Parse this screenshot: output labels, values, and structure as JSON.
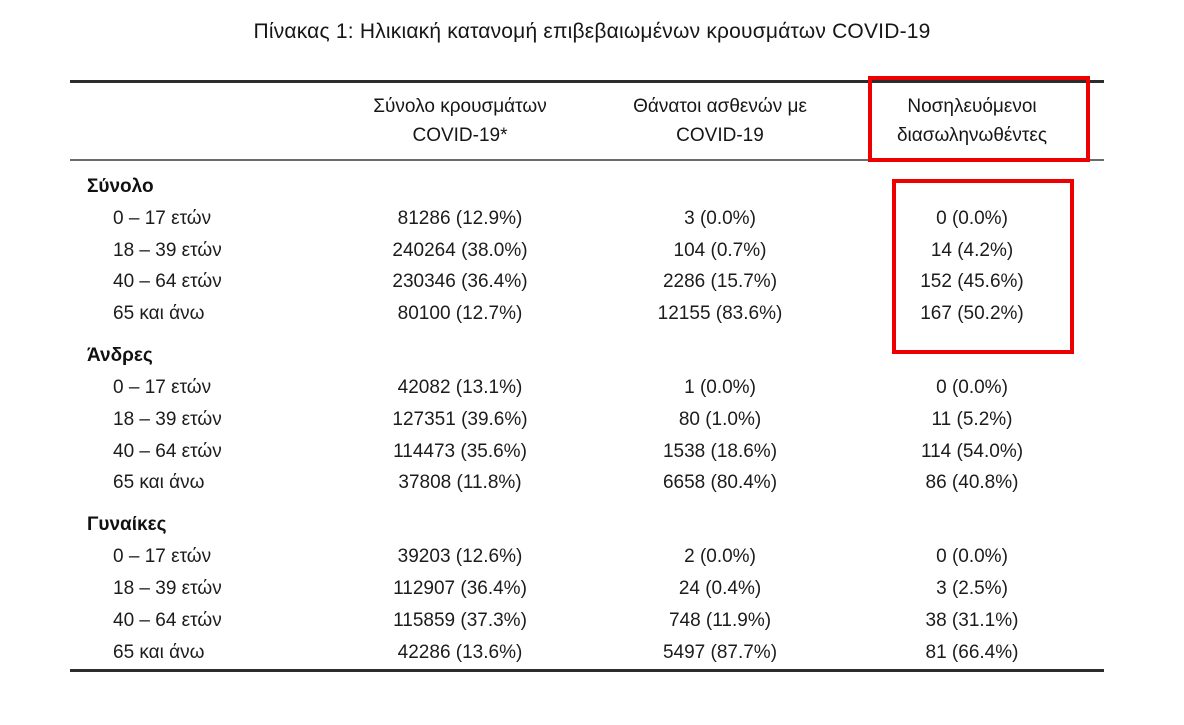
{
  "title": "Πίνακας 1: Ηλικιακή κατανομή επιβεβαιωμένων κρουσμάτων COVID-19",
  "highlight": {
    "color": "#ee0000"
  },
  "table": {
    "headers": {
      "cases_line1": "Σύνολο κρουσμάτων",
      "cases_line2": "COVID-19*",
      "deaths_line1": "Θάνατοι ασθενών με",
      "deaths_line2": "COVID-19",
      "intubated_line1": "Νοσηλευόμενοι",
      "intubated_line2": "διασωληνωθέντες"
    },
    "groups": [
      {
        "label": "Σύνολο",
        "rows": [
          {
            "age": "0 – 17 ετών",
            "cases": "81286 (12.9%)",
            "deaths": "3 (0.0%)",
            "intubated": "0 (0.0%)"
          },
          {
            "age": "18 – 39 ετών",
            "cases": "240264 (38.0%)",
            "deaths": "104 (0.7%)",
            "intubated": "14 (4.2%)"
          },
          {
            "age": "40 – 64 ετών",
            "cases": "230346 (36.4%)",
            "deaths": "2286 (15.7%)",
            "intubated": "152 (45.6%)"
          },
          {
            "age": "65 και άνω",
            "cases": "80100 (12.7%)",
            "deaths": "12155 (83.6%)",
            "intubated": "167 (50.2%)"
          }
        ]
      },
      {
        "label": "Άνδρες",
        "rows": [
          {
            "age": "0 – 17 ετών",
            "cases": "42082 (13.1%)",
            "deaths": "1 (0.0%)",
            "intubated": "0 (0.0%)"
          },
          {
            "age": "18 – 39 ετών",
            "cases": "127351 (39.6%)",
            "deaths": "80 (1.0%)",
            "intubated": "11 (5.2%)"
          },
          {
            "age": "40 – 64 ετών",
            "cases": "114473 (35.6%)",
            "deaths": "1538 (18.6%)",
            "intubated": "114 (54.0%)"
          },
          {
            "age": "65 και άνω",
            "cases": "37808 (11.8%)",
            "deaths": "6658 (80.4%)",
            "intubated": "86 (40.8%)"
          }
        ]
      },
      {
        "label": "Γυναίκες",
        "rows": [
          {
            "age": "0 – 17 ετών",
            "cases": "39203 (12.6%)",
            "deaths": "2 (0.0%)",
            "intubated": "0 (0.0%)"
          },
          {
            "age": "18 – 39 ετών",
            "cases": "112907 (36.4%)",
            "deaths": "24 (0.4%)",
            "intubated": "3 (2.5%)"
          },
          {
            "age": "40 – 64 ετών",
            "cases": "115859 (37.3%)",
            "deaths": "748 (11.9%)",
            "intubated": "38 (31.1%)"
          },
          {
            "age": "65 και άνω",
            "cases": "42286 (13.6%)",
            "deaths": "5497 (87.7%)",
            "intubated": "81 (66.4%)"
          }
        ]
      }
    ]
  }
}
